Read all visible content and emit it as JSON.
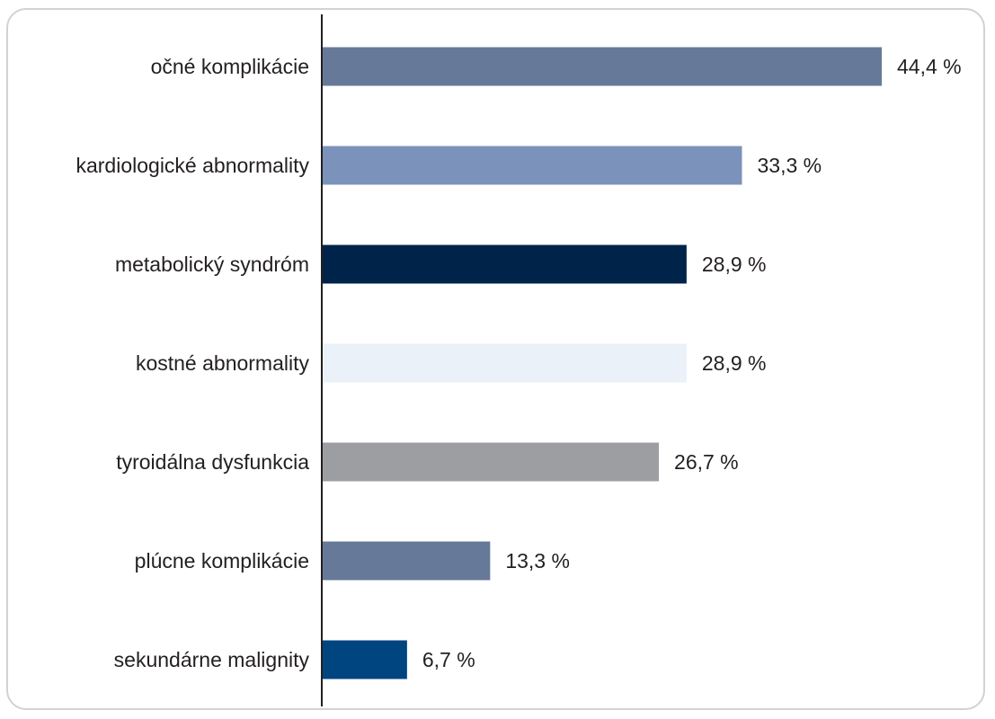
{
  "chart_data": {
    "type": "bar",
    "orientation": "horizontal",
    "categories": [
      "očné komplikácie",
      "kardiologické abnormality",
      "metabolický syndróm",
      "kostné abnormality",
      "tyroidálna dysfunkcia",
      "plúcne komplikácie",
      "sekundárne malignity"
    ],
    "values": [
      44.4,
      33.3,
      28.9,
      28.9,
      26.7,
      13.3,
      6.7
    ],
    "value_labels": [
      "44,4 %",
      "33,3 %",
      "28,9 %",
      "28,9 %",
      "26,7 %",
      "13,3 %",
      "6,7 %"
    ],
    "colors": [
      "#677998",
      "#7b93bb",
      "#00234a",
      "#eaf1f9",
      "#9d9ea1",
      "#677998",
      "#004480"
    ],
    "xlim": [
      0,
      44.4
    ],
    "grid": false,
    "legend": "none"
  }
}
